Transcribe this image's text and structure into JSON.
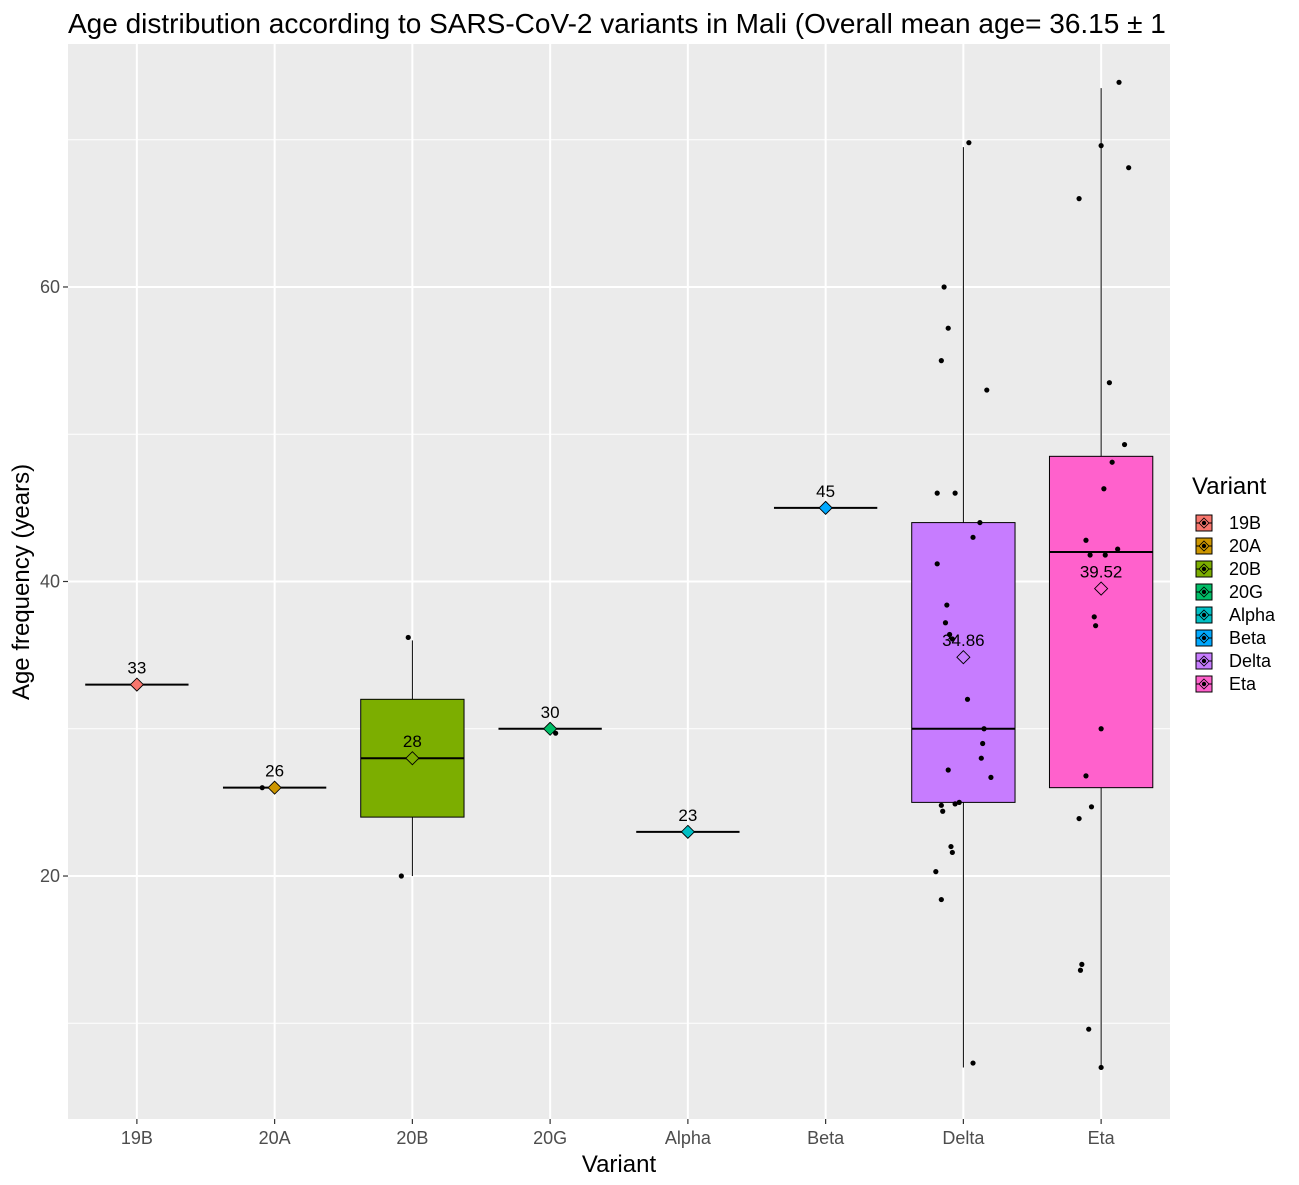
{
  "chart_data": {
    "type": "box",
    "title": "Age distribution according to SARS-CoV-2 variants in Mali (Overall mean age= 36.15 ± 1",
    "xlabel": "Variant",
    "ylabel": "Age frequency (years)",
    "ylim": [
      3.5,
      76.5
    ],
    "yticks": [
      20,
      40,
      60
    ],
    "grid": true,
    "legend": {
      "title": "Variant",
      "position": "right"
    },
    "categories": [
      "19B",
      "20A",
      "20B",
      "20G",
      "Alpha",
      "Beta",
      "Delta",
      "Eta"
    ],
    "series": [
      {
        "name": "19B",
        "color": "#F8766D",
        "whisker_low": 33,
        "q1": 33,
        "median": 33,
        "q3": 33,
        "whisker_high": 33,
        "mean": 33,
        "mean_label": "33",
        "points": [
          [
            -0.01,
            33
          ]
        ]
      },
      {
        "name": "20A",
        "color": "#CD9600",
        "whisker_low": 26,
        "q1": 26,
        "median": 26,
        "q3": 26,
        "whisker_high": 26,
        "mean": 26,
        "mean_label": "26",
        "points": [
          [
            -0.09,
            26
          ]
        ]
      },
      {
        "name": "20B",
        "color": "#7CAE00",
        "whisker_low": 20,
        "q1": 24,
        "median": 28,
        "q3": 32,
        "whisker_high": 36,
        "mean": 28,
        "mean_label": "28",
        "points": [
          [
            -0.08,
            20
          ],
          [
            -0.03,
            36.2
          ]
        ]
      },
      {
        "name": "20G",
        "color": "#00BE67",
        "whisker_low": 30,
        "q1": 30,
        "median": 30,
        "q3": 30,
        "whisker_high": 30,
        "mean": 30,
        "mean_label": "30",
        "points": [
          [
            0.04,
            29.7
          ]
        ]
      },
      {
        "name": "Alpha",
        "color": "#00BFC4",
        "whisker_low": 23,
        "q1": 23,
        "median": 23,
        "q3": 23,
        "whisker_high": 23,
        "mean": 23,
        "mean_label": "23",
        "points": [
          [
            0.0,
            22.8
          ]
        ]
      },
      {
        "name": "Beta",
        "color": "#00A9FF",
        "whisker_low": 45,
        "q1": 45,
        "median": 45,
        "q3": 45,
        "whisker_high": 45,
        "mean": 45,
        "mean_label": "45",
        "points": [
          [
            0.0,
            45.2
          ]
        ]
      },
      {
        "name": "Delta",
        "color": "#C77CFF",
        "whisker_low": 7,
        "q1": 25,
        "median": 30,
        "q3": 44,
        "whisker_high": 69.5,
        "mean": 34.86,
        "mean_label": "34.86",
        "points": [
          [
            0.04,
            69.8
          ],
          [
            -0.14,
            60
          ],
          [
            -0.11,
            57.2
          ],
          [
            -0.16,
            55
          ],
          [
            0.17,
            53
          ],
          [
            -0.19,
            46
          ],
          [
            -0.06,
            46
          ],
          [
            0.12,
            44
          ],
          [
            0.07,
            43
          ],
          [
            -0.19,
            41.2
          ],
          [
            -0.12,
            38.4
          ],
          [
            -0.13,
            37.2
          ],
          [
            -0.08,
            36.1
          ],
          [
            -0.1,
            36.4
          ],
          [
            0.03,
            32
          ],
          [
            0.15,
            30
          ],
          [
            0.14,
            29
          ],
          [
            0.13,
            28
          ],
          [
            -0.11,
            27.2
          ],
          [
            0.2,
            26.7
          ],
          [
            -0.16,
            24.8
          ],
          [
            -0.06,
            24.9
          ],
          [
            -0.03,
            25
          ],
          [
            -0.15,
            24.4
          ],
          [
            -0.09,
            22
          ],
          [
            -0.08,
            21.6
          ],
          [
            -0.2,
            20.3
          ],
          [
            -0.16,
            18.4
          ],
          [
            0.07,
            7.3
          ]
        ]
      },
      {
        "name": "Eta",
        "color": "#FF61CC",
        "whisker_low": 7,
        "q1": 26,
        "median": 42,
        "q3": 48.5,
        "whisker_high": 73.5,
        "mean": 39.52,
        "mean_label": "39.52",
        "points": [
          [
            0.13,
            73.9
          ],
          [
            0.0,
            69.6
          ],
          [
            0.2,
            68.1
          ],
          [
            -0.16,
            66
          ],
          [
            0.06,
            53.5
          ],
          [
            0.17,
            49.3
          ],
          [
            0.08,
            48.1
          ],
          [
            0.02,
            46.3
          ],
          [
            -0.11,
            42.8
          ],
          [
            0.12,
            42.2
          ],
          [
            -0.08,
            41.8
          ],
          [
            0.03,
            41.8
          ],
          [
            -0.05,
            37.6
          ],
          [
            -0.04,
            37
          ],
          [
            0.0,
            30
          ],
          [
            -0.11,
            26.8
          ],
          [
            -0.07,
            24.7
          ],
          [
            -0.16,
            23.9
          ],
          [
            -0.14,
            14
          ],
          [
            -0.15,
            13.6
          ],
          [
            -0.09,
            9.6
          ],
          [
            0.0,
            7
          ]
        ]
      }
    ]
  }
}
